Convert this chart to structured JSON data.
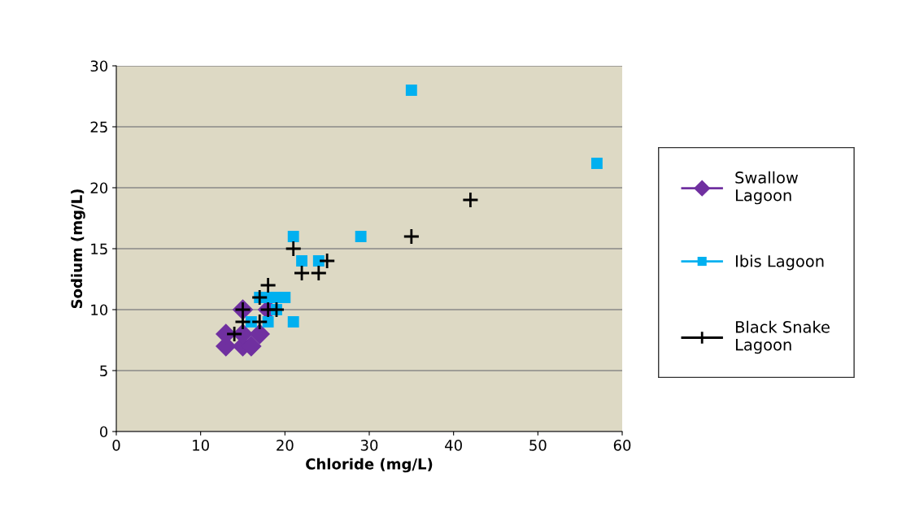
{
  "chart_data": {
    "type": "scatter",
    "xlabel": "Chloride (mg/L)",
    "ylabel": "Sodium (mg/L)",
    "xlim": [
      0,
      60
    ],
    "xticks": [
      0,
      10,
      20,
      30,
      40,
      50,
      60
    ],
    "ylim": [
      0,
      30
    ],
    "yticks": [
      0,
      5,
      10,
      15,
      20,
      25,
      30
    ],
    "grid": "y",
    "legend": "right",
    "series": [
      {
        "name": "Swallow Lagoon",
        "color": "#7030a0",
        "marker": "diamond",
        "x": [
          13,
          13,
          15,
          16,
          15,
          17,
          15,
          18
        ],
        "values": [
          7,
          8,
          7,
          7,
          8,
          8,
          10,
          10
        ]
      },
      {
        "name": "Ibis Lagoon",
        "color": "#00b0f0",
        "marker": "square",
        "x": [
          35,
          57,
          21,
          29,
          22,
          24,
          17,
          18,
          19,
          20,
          18,
          21,
          19,
          16
        ],
        "values": [
          28,
          22,
          16,
          16,
          14,
          14,
          11,
          11,
          11,
          11,
          9,
          9,
          10,
          9
        ]
      },
      {
        "name": "Black Snake Lagoon",
        "color": "#000000",
        "marker": "cross",
        "x": [
          42,
          35,
          21,
          22,
          24,
          25,
          18,
          17,
          18,
          19,
          15,
          15,
          17,
          14
        ],
        "values": [
          19,
          16,
          15,
          13,
          13,
          14,
          12,
          11,
          10,
          10,
          10,
          9,
          9,
          8
        ]
      }
    ]
  }
}
